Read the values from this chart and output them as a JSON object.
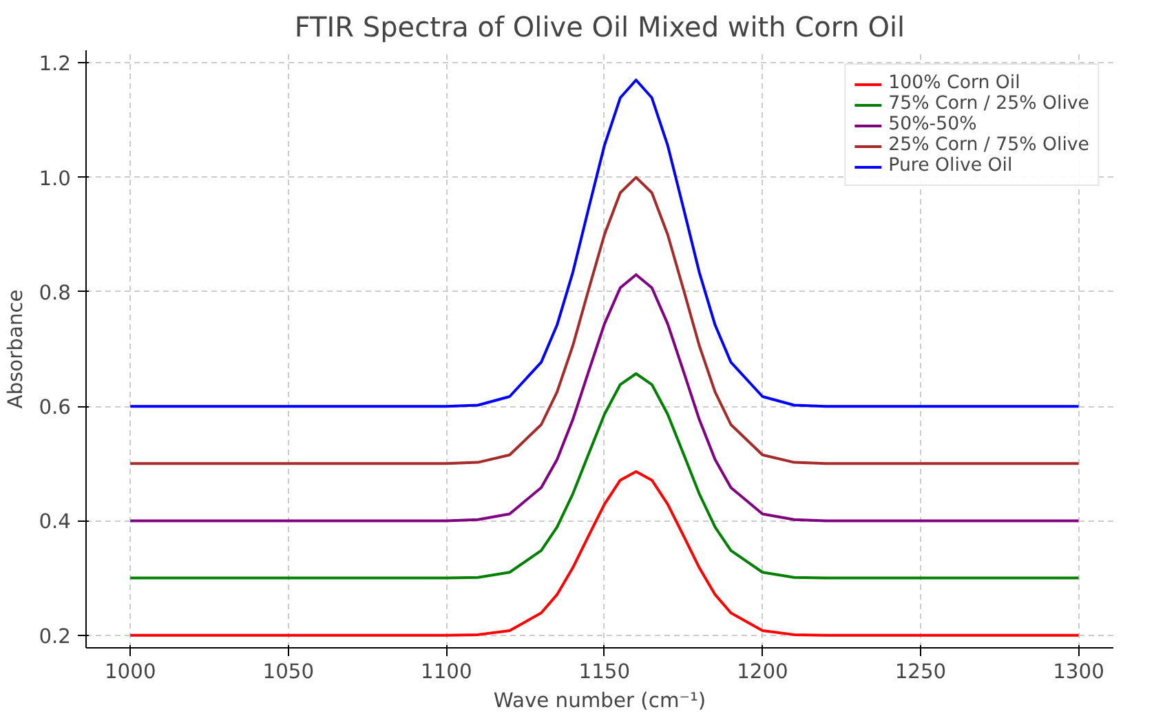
{
  "chart_data": {
    "type": "line",
    "title": "FTIR Spectra of Olive Oil Mixed with Corn Oil",
    "xlabel": "Wave number (cm⁻¹)",
    "ylabel": "Absorbance",
    "x": [
      1000,
      1100,
      1110,
      1120,
      1130,
      1135,
      1140,
      1145,
      1150,
      1155,
      1160,
      1165,
      1170,
      1175,
      1180,
      1185,
      1190,
      1200,
      1210,
      1220,
      1300
    ],
    "series": [
      {
        "name": "100% Corn Oil",
        "color": "#ff0000",
        "values": [
          0.2,
          0.2,
          0.201,
          0.208,
          0.239,
          0.271,
          0.318,
          0.374,
          0.429,
          0.471,
          0.486,
          0.471,
          0.429,
          0.374,
          0.318,
          0.271,
          0.239,
          0.208,
          0.201,
          0.2,
          0.2
        ]
      },
      {
        "name": "75% Corn / 25% Olive",
        "color": "#008000",
        "values": [
          0.3,
          0.3,
          0.301,
          0.31,
          0.348,
          0.389,
          0.447,
          0.517,
          0.586,
          0.638,
          0.657,
          0.638,
          0.586,
          0.517,
          0.447,
          0.389,
          0.348,
          0.31,
          0.301,
          0.3,
          0.3
        ]
      },
      {
        "name": "50%-50%",
        "color": "#800080",
        "values": [
          0.4,
          0.4,
          0.402,
          0.412,
          0.458,
          0.507,
          0.577,
          0.661,
          0.744,
          0.807,
          0.83,
          0.807,
          0.744,
          0.661,
          0.577,
          0.507,
          0.458,
          0.412,
          0.402,
          0.4,
          0.4
        ]
      },
      {
        "name": "25% Corn / 75% Olive",
        "color": "#a52a2a",
        "values": [
          0.5,
          0.5,
          0.502,
          0.515,
          0.568,
          0.625,
          0.706,
          0.804,
          0.9,
          0.973,
          1.0,
          0.973,
          0.9,
          0.804,
          0.706,
          0.625,
          0.568,
          0.515,
          0.502,
          0.5,
          0.5
        ]
      },
      {
        "name": "Pure Olive Oil",
        "color": "#0000ff",
        "values": [
          0.6,
          0.6,
          0.602,
          0.617,
          0.677,
          0.742,
          0.834,
          0.946,
          1.056,
          1.139,
          1.17,
          1.139,
          1.056,
          0.946,
          0.834,
          0.742,
          0.677,
          0.617,
          0.602,
          0.6,
          0.6
        ]
      }
    ],
    "xlim": [
      986,
      1311
    ],
    "ylim": [
      0.178,
      1.222
    ],
    "xticks": [
      1000,
      1050,
      1100,
      1150,
      1200,
      1250,
      1300
    ],
    "yticks": [
      0.2,
      0.4,
      0.6,
      0.8,
      {
        "value": 1,
        "label": "1.0"
      },
      1.2
    ],
    "grid": true,
    "legend": "top right",
    "line_style": "solid",
    "marker": "none"
  }
}
